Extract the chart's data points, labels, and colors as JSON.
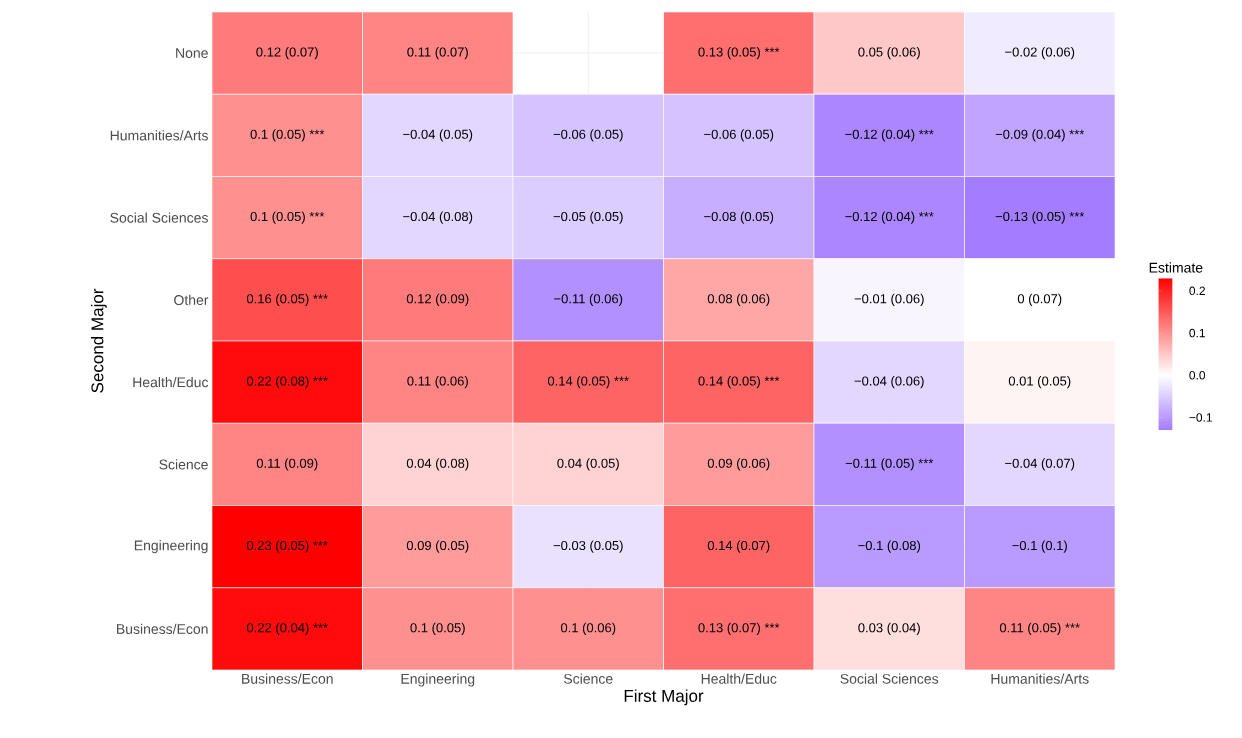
{
  "chart_data": {
    "type": "heatmap",
    "xlabel": "First Major",
    "ylabel": "Second Major",
    "clabel": "Estimate",
    "categories": [
      "Business/Econ",
      "Engineering",
      "Science",
      "Health/Educ",
      "Social Sciences",
      "Humanities/Arts"
    ],
    "y_categories": [
      "None",
      "Humanities/Arts",
      "Social Sciences",
      "Other",
      "Health/Educ",
      "Science",
      "Engineering",
      "Business/Econ"
    ],
    "cells": [
      [
        0.12,
        0.11,
        null,
        0.13,
        0.05,
        -0.02
      ],
      [
        0.1,
        -0.04,
        -0.06,
        -0.06,
        -0.12,
        -0.09
      ],
      [
        0.1,
        -0.04,
        -0.05,
        -0.08,
        -0.12,
        -0.13
      ],
      [
        0.16,
        0.12,
        -0.11,
        0.08,
        -0.01,
        0
      ],
      [
        0.22,
        0.11,
        0.14,
        0.14,
        -0.04,
        0.01
      ],
      [
        0.11,
        0.04,
        0.04,
        0.09,
        -0.11,
        -0.04
      ],
      [
        0.23,
        0.09,
        -0.03,
        0.14,
        -0.1,
        -0.1
      ],
      [
        0.22,
        0.1,
        0.1,
        0.13,
        0.03,
        0.11
      ]
    ],
    "cell_labels": [
      [
        "0.12 (0.07)",
        "0.11 (0.07)",
        null,
        "0.13 (0.05) ***",
        "0.05 (0.06)",
        "−0.02 (0.06)"
      ],
      [
        "0.1 (0.05) ***",
        "−0.04 (0.05)",
        "−0.06 (0.05)",
        "−0.06 (0.05)",
        "−0.12 (0.04) ***",
        "−0.09 (0.04) ***"
      ],
      [
        "0.1 (0.05) ***",
        "−0.04 (0.08)",
        "−0.05 (0.05)",
        "−0.08 (0.05)",
        "−0.12 (0.04) ***",
        "−0.13 (0.05) ***"
      ],
      [
        "0.16 (0.05) ***",
        "0.12 (0.09)",
        "−0.11 (0.06)",
        "0.08 (0.06)",
        "−0.01 (0.06)",
        "0 (0.07)"
      ],
      [
        "0.22 (0.08) ***",
        "0.11 (0.06)",
        "0.14 (0.05) ***",
        "0.14 (0.05) ***",
        "−0.04 (0.06)",
        "0.01 (0.05)"
      ],
      [
        "0.11 (0.09)",
        "0.04 (0.08)",
        "0.04 (0.05)",
        "0.09 (0.06)",
        "−0.11 (0.05) ***",
        "−0.04 (0.07)"
      ],
      [
        "0.23 (0.05) ***",
        "0.09 (0.05)",
        "−0.03 (0.05)",
        "0.14 (0.07)",
        "−0.1 (0.08)",
        "−0.1 (0.1)"
      ],
      [
        "0.22 (0.04) ***",
        "0.1 (0.05)",
        "0.1 (0.06)",
        "0.13 (0.07) ***",
        "0.03 (0.04)",
        "0.11 (0.05) ***"
      ]
    ],
    "clim": [
      -0.13,
      0.23
    ],
    "cticks": [
      {
        "value": -0.1,
        "label": "−0.1"
      },
      {
        "value": 0,
        "label": "0.0"
      },
      {
        "value": 0.1,
        "label": "0.1"
      },
      {
        "value": 0.2,
        "label": "0.2"
      }
    ],
    "colors": [
      "#a47cff",
      "#ffffff",
      "#ff0000"
    ],
    "grid": true
  }
}
